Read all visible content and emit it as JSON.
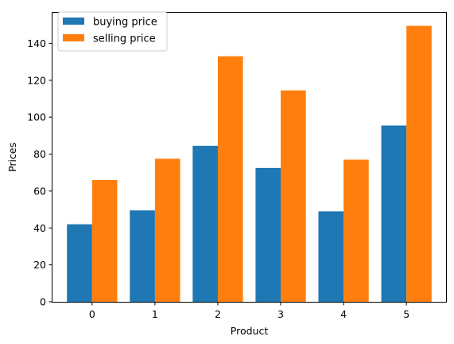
{
  "chart_data": {
    "type": "bar",
    "categories": [
      "0",
      "1",
      "2",
      "3",
      "4",
      "5"
    ],
    "series": [
      {
        "name": "buying price",
        "values": [
          42,
          49.5,
          84.5,
          72.5,
          49,
          95.5
        ],
        "color": "#1f77b4"
      },
      {
        "name": "selling price",
        "values": [
          66,
          77.5,
          133,
          114.5,
          77,
          149.5
        ],
        "color": "#ff7f0e"
      }
    ],
    "xlabel": "Product",
    "ylabel": "Prices",
    "ylim": [
      0,
      157
    ],
    "yticks": [
      0,
      20,
      40,
      60,
      80,
      100,
      120,
      140
    ],
    "grid": false,
    "legend": "top-left"
  }
}
